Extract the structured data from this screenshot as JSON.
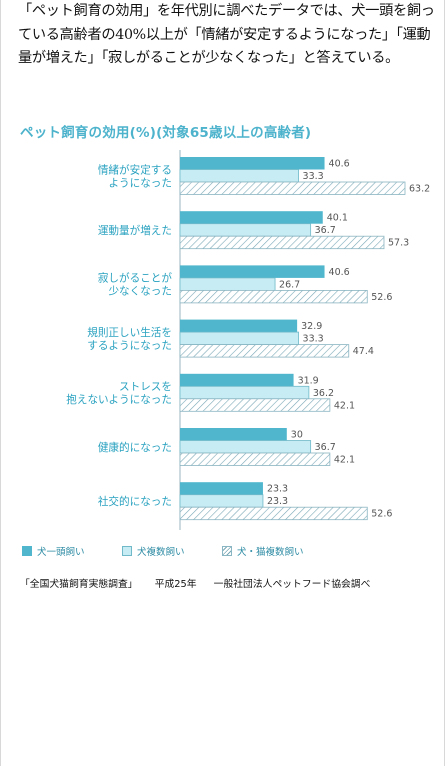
{
  "intro_text": "「ペット飼育の効用」を年代別に調べたデータでは、犬一頭を飼っている高齢者の40%以上が「情緒が安定するようになった」「運動量が増えた」「寂しがることが少なくなった」と答えている。",
  "source": {
    "survey": "「全国犬猫飼育実態調査」",
    "year": "平成25年",
    "org": "一般社団法人ペットフード協会調べ"
  },
  "colors": {
    "title": "#4db3cc",
    "series_1": "#4fb6cd",
    "series_2": "#c8ecf3",
    "series_3_hatch": "#7aa8b6"
  },
  "chart_data": {
    "type": "bar",
    "orientation": "horizontal",
    "title": "ペット飼育の効用(%)(対象65歳以上の高齢者)",
    "xlim": [
      0,
      70
    ],
    "grid": false,
    "legend_position": "bottom-left",
    "categories": [
      [
        "情緒が安定する",
        "ようになった"
      ],
      [
        "運動量が増えた"
      ],
      [
        "寂しがることが",
        "少なくなった"
      ],
      [
        "規則正しい生活を",
        "するようになった"
      ],
      [
        "ストレスを",
        "抱えないようになった"
      ],
      [
        "健康的になった"
      ],
      [
        "社交的になった"
      ]
    ],
    "series": [
      {
        "name": "犬一頭飼い",
        "values": [
          40.6,
          40.1,
          40.6,
          32.9,
          31.9,
          30,
          23.3
        ]
      },
      {
        "name": "犬複数飼い",
        "values": [
          33.3,
          36.7,
          26.7,
          33.3,
          36.2,
          36.7,
          23.3
        ]
      },
      {
        "name": "犬・猫複数飼い",
        "values": [
          63.2,
          57.3,
          52.6,
          47.4,
          42.1,
          42.1,
          52.6
        ]
      }
    ]
  }
}
